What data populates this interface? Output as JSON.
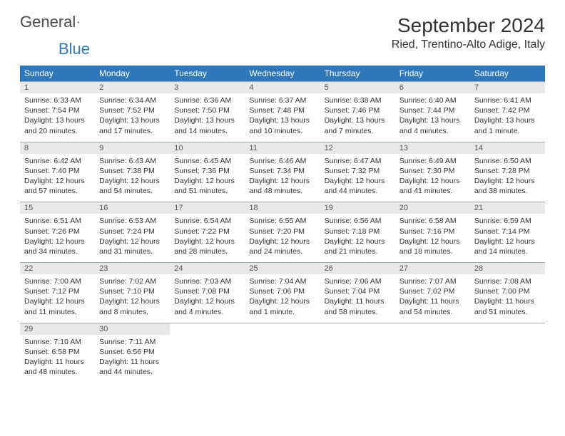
{
  "brand": {
    "name1": "General",
    "name2": "Blue"
  },
  "header": {
    "month_title": "September 2024",
    "location": "Ried, Trentino-Alto Adige, Italy"
  },
  "colors": {
    "header_bg": "#2f77bb",
    "daynum_bg": "#e8e8e8",
    "text": "#333333",
    "brand_blue": "#2f77bb"
  },
  "day_names": [
    "Sunday",
    "Monday",
    "Tuesday",
    "Wednesday",
    "Thursday",
    "Friday",
    "Saturday"
  ],
  "days": [
    {
      "n": "1",
      "sr": "6:33 AM",
      "ss": "7:54 PM",
      "dl": "13 hours and 20 minutes."
    },
    {
      "n": "2",
      "sr": "6:34 AM",
      "ss": "7:52 PM",
      "dl": "13 hours and 17 minutes."
    },
    {
      "n": "3",
      "sr": "6:36 AM",
      "ss": "7:50 PM",
      "dl": "13 hours and 14 minutes."
    },
    {
      "n": "4",
      "sr": "6:37 AM",
      "ss": "7:48 PM",
      "dl": "13 hours and 10 minutes."
    },
    {
      "n": "5",
      "sr": "6:38 AM",
      "ss": "7:46 PM",
      "dl": "13 hours and 7 minutes."
    },
    {
      "n": "6",
      "sr": "6:40 AM",
      "ss": "7:44 PM",
      "dl": "13 hours and 4 minutes."
    },
    {
      "n": "7",
      "sr": "6:41 AM",
      "ss": "7:42 PM",
      "dl": "13 hours and 1 minute."
    },
    {
      "n": "8",
      "sr": "6:42 AM",
      "ss": "7:40 PM",
      "dl": "12 hours and 57 minutes."
    },
    {
      "n": "9",
      "sr": "6:43 AM",
      "ss": "7:38 PM",
      "dl": "12 hours and 54 minutes."
    },
    {
      "n": "10",
      "sr": "6:45 AM",
      "ss": "7:36 PM",
      "dl": "12 hours and 51 minutes."
    },
    {
      "n": "11",
      "sr": "6:46 AM",
      "ss": "7:34 PM",
      "dl": "12 hours and 48 minutes."
    },
    {
      "n": "12",
      "sr": "6:47 AM",
      "ss": "7:32 PM",
      "dl": "12 hours and 44 minutes."
    },
    {
      "n": "13",
      "sr": "6:49 AM",
      "ss": "7:30 PM",
      "dl": "12 hours and 41 minutes."
    },
    {
      "n": "14",
      "sr": "6:50 AM",
      "ss": "7:28 PM",
      "dl": "12 hours and 38 minutes."
    },
    {
      "n": "15",
      "sr": "6:51 AM",
      "ss": "7:26 PM",
      "dl": "12 hours and 34 minutes."
    },
    {
      "n": "16",
      "sr": "6:53 AM",
      "ss": "7:24 PM",
      "dl": "12 hours and 31 minutes."
    },
    {
      "n": "17",
      "sr": "6:54 AM",
      "ss": "7:22 PM",
      "dl": "12 hours and 28 minutes."
    },
    {
      "n": "18",
      "sr": "6:55 AM",
      "ss": "7:20 PM",
      "dl": "12 hours and 24 minutes."
    },
    {
      "n": "19",
      "sr": "6:56 AM",
      "ss": "7:18 PM",
      "dl": "12 hours and 21 minutes."
    },
    {
      "n": "20",
      "sr": "6:58 AM",
      "ss": "7:16 PM",
      "dl": "12 hours and 18 minutes."
    },
    {
      "n": "21",
      "sr": "6:59 AM",
      "ss": "7:14 PM",
      "dl": "12 hours and 14 minutes."
    },
    {
      "n": "22",
      "sr": "7:00 AM",
      "ss": "7:12 PM",
      "dl": "12 hours and 11 minutes."
    },
    {
      "n": "23",
      "sr": "7:02 AM",
      "ss": "7:10 PM",
      "dl": "12 hours and 8 minutes."
    },
    {
      "n": "24",
      "sr": "7:03 AM",
      "ss": "7:08 PM",
      "dl": "12 hours and 4 minutes."
    },
    {
      "n": "25",
      "sr": "7:04 AM",
      "ss": "7:06 PM",
      "dl": "12 hours and 1 minute."
    },
    {
      "n": "26",
      "sr": "7:06 AM",
      "ss": "7:04 PM",
      "dl": "11 hours and 58 minutes."
    },
    {
      "n": "27",
      "sr": "7:07 AM",
      "ss": "7:02 PM",
      "dl": "11 hours and 54 minutes."
    },
    {
      "n": "28",
      "sr": "7:08 AM",
      "ss": "7:00 PM",
      "dl": "11 hours and 51 minutes."
    },
    {
      "n": "29",
      "sr": "7:10 AM",
      "ss": "6:58 PM",
      "dl": "11 hours and 48 minutes."
    },
    {
      "n": "30",
      "sr": "7:11 AM",
      "ss": "6:56 PM",
      "dl": "11 hours and 44 minutes."
    }
  ],
  "labels": {
    "sunrise": "Sunrise: ",
    "sunset": "Sunset: ",
    "daylight": "Daylight: "
  },
  "layout": {
    "start_day_index": 0,
    "total_cells": 35
  }
}
